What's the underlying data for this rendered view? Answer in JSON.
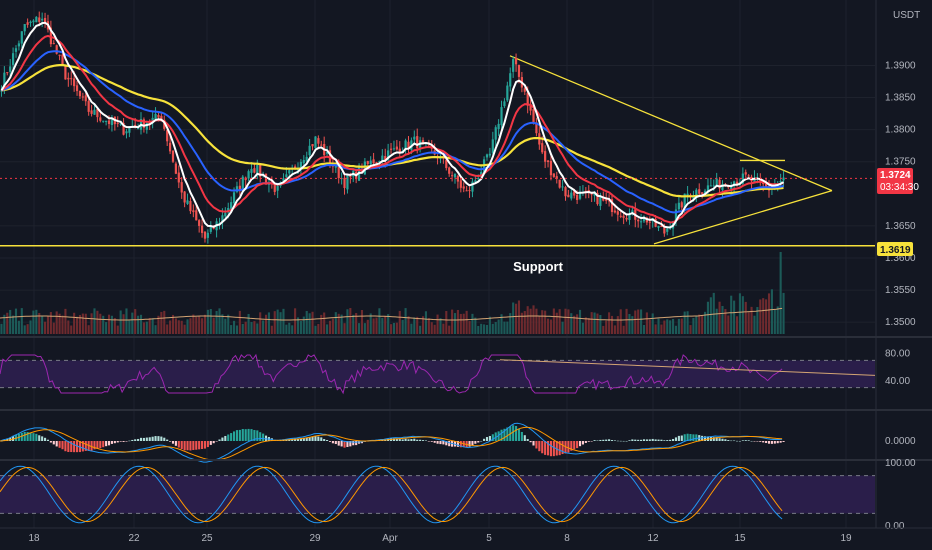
{
  "header": {
    "currency": "USDT"
  },
  "price_tags": {
    "last_price": "1.3724",
    "countdown": "03:34:30",
    "support_level": "1.3619"
  },
  "annotations": {
    "support_label": "Support"
  },
  "colors": {
    "background": "#131722",
    "up": "#26a69a",
    "down": "#ef5350",
    "ema_fast": "#ffffff",
    "ema_mid": "#f23645",
    "ema_slow": "#2962ff",
    "ema_long": "#f7e23b",
    "triangle": "#f7e23b",
    "rsi_line": "#9c27b0",
    "rsi_band": "#2a1e4a",
    "macd_line": "#2196f3",
    "signal_line": "#ff9800"
  },
  "chart_data": [
    {
      "type": "candlestick",
      "panel": "price",
      "y_ticks": [
        "1.3900",
        "1.3850",
        "1.3800",
        "1.3750",
        "1.3650",
        "1.3600",
        "1.3550",
        "1.3500"
      ],
      "y_range": [
        1.348,
        1.4002
      ],
      "x_ticks": [
        "18",
        "22",
        "25",
        "29",
        "Apr",
        "5",
        "8",
        "12",
        "15",
        "19"
      ],
      "key_levels": {
        "support": 1.3619,
        "last": 1.3724,
        "triangle_apex": 1.3705
      },
      "moving_averages": [
        "ema_fast",
        "ema_mid",
        "ema_slow",
        "ema_long"
      ],
      "volume_panel": true
    },
    {
      "type": "line",
      "panel": "rsi",
      "y_ticks": [
        "80.00",
        "40.00"
      ],
      "y_range": [
        0,
        100
      ],
      "band": [
        30,
        70
      ],
      "trendline": [
        71,
        48
      ]
    },
    {
      "type": "histogram",
      "panel": "macd",
      "y_ticks": [
        "0.0000"
      ],
      "series": [
        "macd_line",
        "signal_line"
      ]
    },
    {
      "type": "line",
      "panel": "stochastic",
      "y_ticks": [
        "100.00",
        "0.00"
      ],
      "y_range": [
        0,
        100
      ],
      "band": [
        20,
        80
      ]
    }
  ]
}
